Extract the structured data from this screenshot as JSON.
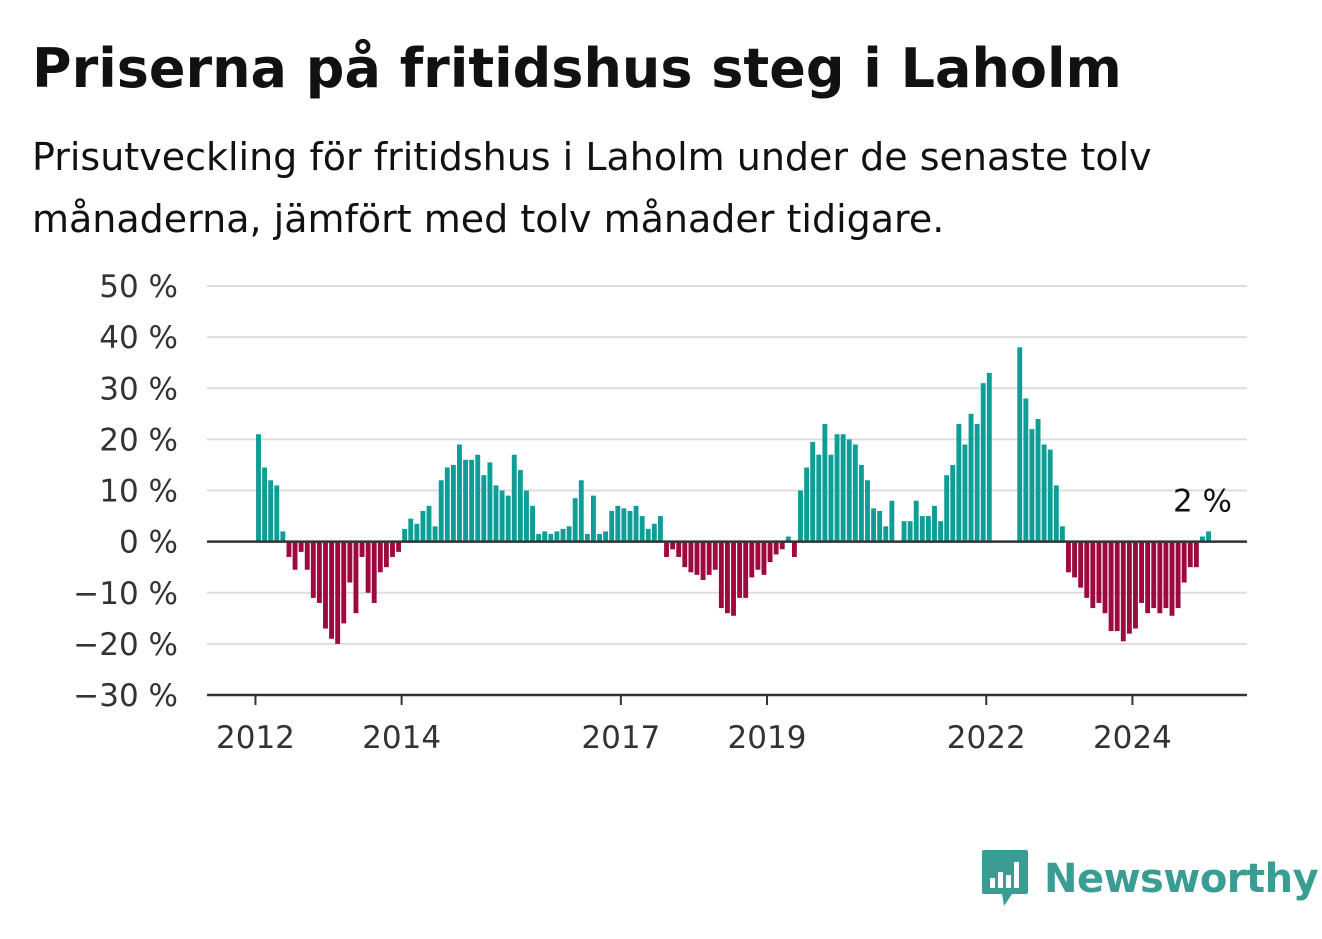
{
  "title": "Priserna på fritidshus steg i Laholm",
  "subtitle": "Prisutveckling för fritidshus i Laholm under de senaste tolv månaderna, jämfört med tolv månader tidigare.",
  "brand": "Newsworthy",
  "brand_icon": "newsworthy-logo-icon",
  "colors": {
    "positive": "#0e9e98",
    "negative": "#9e0a3f",
    "grid": "#dddddd",
    "axis": "#333333",
    "brand": "#3a9d94"
  },
  "chart_data": {
    "type": "bar",
    "title": "Priserna på fritidshus steg i Laholm",
    "xlabel": "",
    "ylabel": "",
    "ylim": [
      -30,
      50
    ],
    "yticks": [
      -30,
      -20,
      -10,
      0,
      10,
      20,
      30,
      40,
      50
    ],
    "ytick_labels": [
      "−30 %",
      "−20 %",
      "−10 %",
      "0 %",
      "10 %",
      "20 %",
      "30 %",
      "40 %",
      "50 %"
    ],
    "xticks": [
      2012,
      2014,
      2017,
      2019,
      2022,
      2024
    ],
    "xtick_labels": [
      "2012",
      "2014",
      "2017",
      "2019",
      "2022",
      "2024"
    ],
    "grid": true,
    "start_year": 2012,
    "start_month": 1,
    "annotation": {
      "label": "2 %",
      "value": 2
    },
    "values": [
      21,
      14.5,
      12,
      11,
      2,
      -3,
      -5.5,
      -2,
      -5.5,
      -11,
      -12,
      -17,
      -19,
      -20,
      -16,
      -8,
      -14,
      -3,
      -10,
      -12,
      -6,
      -5,
      -3,
      -2,
      2.5,
      4.5,
      3.5,
      6,
      7,
      3,
      12,
      14.5,
      15,
      19,
      16,
      16,
      17,
      13,
      15.5,
      11,
      10,
      9,
      17,
      14,
      10,
      7,
      1.5,
      2,
      1.5,
      2,
      2.5,
      3,
      8.5,
      12,
      1.5,
      9,
      1.5,
      2,
      6,
      7,
      6.5,
      6,
      7,
      5,
      2.5,
      3.5,
      5,
      -3,
      -1.5,
      -3,
      -5,
      -6,
      -6.5,
      -7.5,
      -6.5,
      -5.5,
      -13,
      -14,
      -14.5,
      -11,
      -11,
      -7,
      -5.5,
      -6.5,
      -4,
      -2.5,
      -1.5,
      1,
      -3,
      10,
      14.5,
      19.5,
      17,
      23,
      17,
      21,
      21,
      20,
      19,
      15,
      12,
      6.5,
      6,
      3,
      8,
      null,
      4,
      4,
      8,
      5,
      5,
      7,
      4,
      13,
      15,
      23,
      19,
      25,
      23,
      31,
      33,
      null,
      null,
      null,
      null,
      38,
      28,
      22,
      24,
      19,
      18,
      11,
      3,
      -6,
      -7,
      -9,
      -11,
      -13,
      -12,
      -14,
      -17.5,
      -17.5,
      -19.5,
      -18,
      -17,
      -12,
      -14,
      -13,
      -14,
      -13,
      -14.5,
      -13,
      -8,
      -5,
      -5,
      1,
      2
    ]
  }
}
